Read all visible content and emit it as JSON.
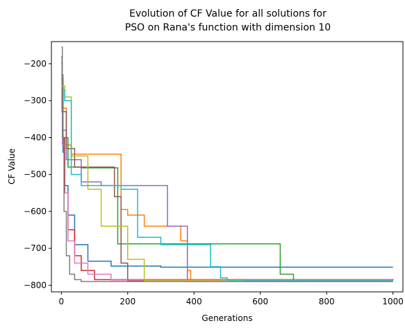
{
  "chart_data": {
    "type": "line",
    "title_lines": [
      "Evolution of CF Value for all solutions for",
      "PSO on Rana's function with dimension 10"
    ],
    "xlabel": "Generations",
    "ylabel": "CF Value",
    "xlim": [
      -30,
      1030
    ],
    "ylim": [
      -818,
      -140
    ],
    "xticks": [
      0,
      200,
      400,
      600,
      800,
      1000
    ],
    "yticks": [
      -200,
      -300,
      -400,
      -500,
      -600,
      -700,
      -800
    ],
    "grid": false,
    "legend": "none",
    "series": [
      {
        "color": "#1f77b4",
        "x": [
          0,
          2,
          5,
          10,
          20,
          40,
          80,
          150,
          300,
          1000
        ],
        "y": [
          -180,
          -330,
          -440,
          -530,
          -610,
          -690,
          -735,
          -748,
          -751,
          -751
        ]
      },
      {
        "color": "#ff7f0e",
        "x": [
          0,
          5,
          15,
          30,
          60,
          180,
          200,
          250,
          360,
          380,
          390,
          1000
        ],
        "y": [
          -250,
          -320,
          -420,
          -445,
          -445,
          -595,
          -610,
          -640,
          -680,
          -760,
          -788,
          -788
        ]
      },
      {
        "color": "#2ca02c",
        "x": [
          0,
          5,
          20,
          60,
          160,
          170,
          650,
          660,
          700,
          1000
        ],
        "y": [
          -300,
          -400,
          -480,
          -482,
          -482,
          -688,
          -688,
          -770,
          -786,
          -786
        ]
      },
      {
        "color": "#d62728",
        "x": [
          0,
          3,
          10,
          20,
          40,
          60,
          100,
          1000
        ],
        "y": [
          -200,
          -400,
          -550,
          -650,
          -720,
          -760,
          -785,
          -786
        ]
      },
      {
        "color": "#9467bd",
        "x": [
          0,
          5,
          15,
          60,
          120,
          310,
          320,
          380,
          1000
        ],
        "y": [
          -230,
          -380,
          -460,
          -520,
          -530,
          -530,
          -640,
          -790,
          -790
        ]
      },
      {
        "color": "#8c564b",
        "x": [
          0,
          5,
          15,
          40,
          100,
          160,
          180,
          200,
          1000
        ],
        "y": [
          -240,
          -330,
          -430,
          -480,
          -480,
          -560,
          -740,
          -788,
          -788
        ]
      },
      {
        "color": "#e377c2",
        "x": [
          0,
          3,
          8,
          20,
          40,
          80,
          150,
          1000
        ],
        "y": [
          -220,
          -420,
          -550,
          -680,
          -740,
          -770,
          -786,
          -786
        ]
      },
      {
        "color": "#7f7f7f",
        "x": [
          0,
          3,
          8,
          15,
          25,
          40,
          60,
          1000
        ],
        "y": [
          -155,
          -400,
          -600,
          -720,
          -770,
          -785,
          -790,
          -790
        ]
      },
      {
        "color": "#bcbd22",
        "x": [
          0,
          10,
          30,
          80,
          120,
          200,
          250,
          1000
        ],
        "y": [
          -260,
          -290,
          -450,
          -540,
          -640,
          -730,
          -788,
          -788
        ]
      },
      {
        "color": "#17becf",
        "x": [
          0,
          10,
          30,
          60,
          180,
          230,
          300,
          440,
          450,
          480,
          500,
          550,
          1000
        ],
        "y": [
          -270,
          -300,
          -500,
          -530,
          -540,
          -670,
          -690,
          -690,
          -750,
          -780,
          -786,
          -788,
          -788
        ]
      }
    ]
  }
}
